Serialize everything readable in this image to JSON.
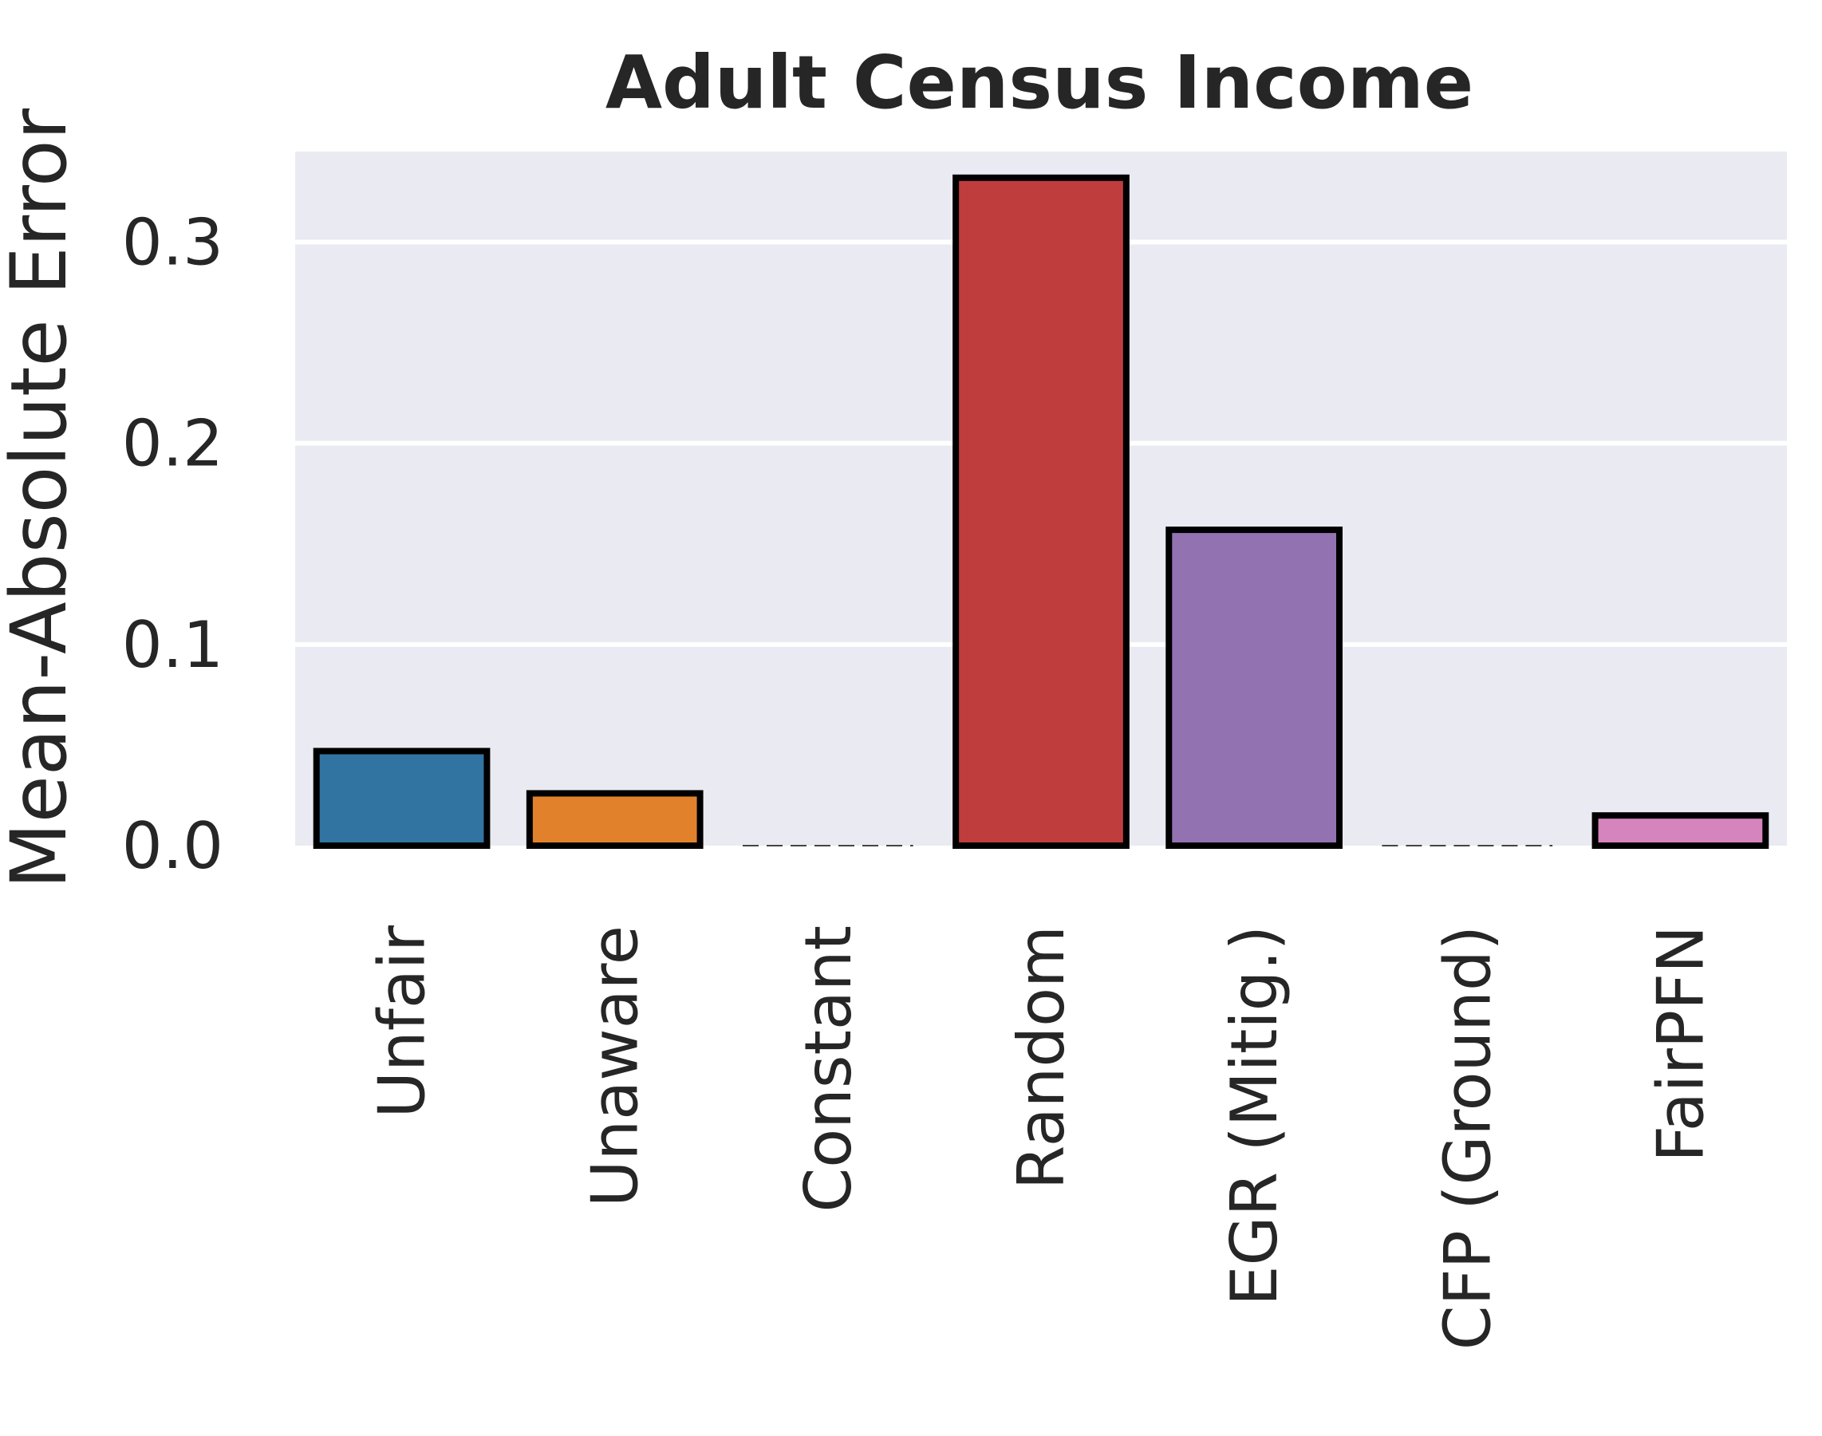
{
  "chart_data": {
    "type": "bar",
    "title": "Adult Census Income",
    "xlabel": "",
    "ylabel": "Mean-Absolute Error",
    "categories": [
      "Unfair",
      "Unaware",
      "Constant",
      "Random",
      "EGR (Mitig.)",
      "CFP (Ground)",
      "FairPFN"
    ],
    "values": [
      0.047,
      0.026,
      0.0,
      0.332,
      0.157,
      0.0,
      0.015
    ],
    "colors": [
      "#3274a1",
      "#e1812c",
      "#3a923a",
      "#c03d3e",
      "#9372b2",
      "#845b53",
      "#d684bd"
    ],
    "yticks": [
      "0.0",
      "0.1",
      "0.2",
      "0.3"
    ],
    "ylim": [
      0,
      0.345
    ],
    "grid": true,
    "background": "#eaeaf2"
  }
}
